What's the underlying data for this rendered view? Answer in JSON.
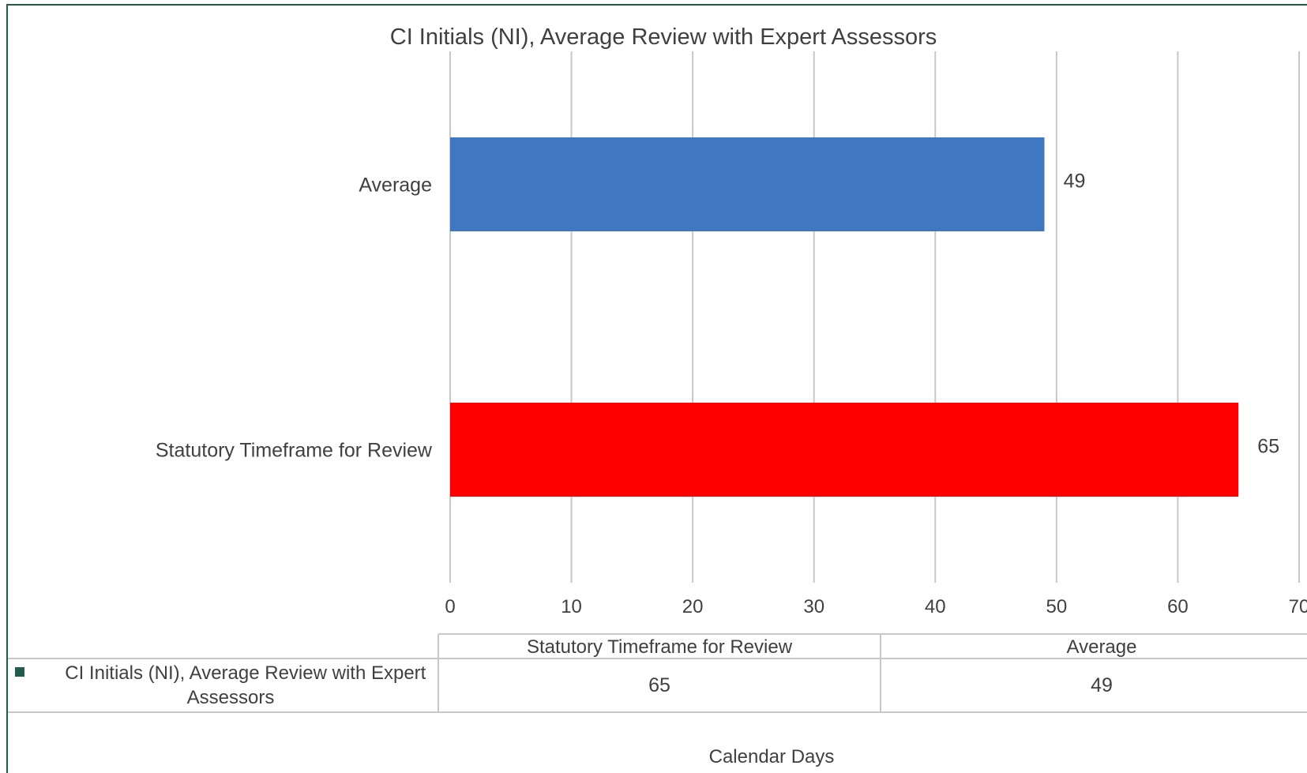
{
  "chart_data": {
    "type": "bar",
    "orientation": "horizontal",
    "title": "CI Initials (NI), Average Review with Expert Assessors",
    "xlabel": "Calendar Days",
    "ylabel": "",
    "categories": [
      "Average",
      "Statutory Timeframe for Review"
    ],
    "values": [
      49,
      65
    ],
    "data_labels": [
      "49",
      "65"
    ],
    "bar_colors": [
      "#4077C1",
      "#FF0000"
    ],
    "xlim": [
      0,
      70
    ],
    "x_ticks": [
      "0",
      "10",
      "20",
      "30",
      "40",
      "50",
      "60",
      "70"
    ],
    "grid": true,
    "legend": "none",
    "data_table": {
      "columns": [
        "Statutory Timeframe for Review",
        "Average"
      ],
      "rows": [
        {
          "name": "CI Initials (NI), Average Review with Expert Assessors",
          "values": [
            "65",
            "49"
          ]
        }
      ]
    }
  },
  "colors": {
    "frame": "#1F5C4B",
    "gridline": "#C8C8C8",
    "legend_key": "#1F5C4B",
    "text": "#404040"
  }
}
